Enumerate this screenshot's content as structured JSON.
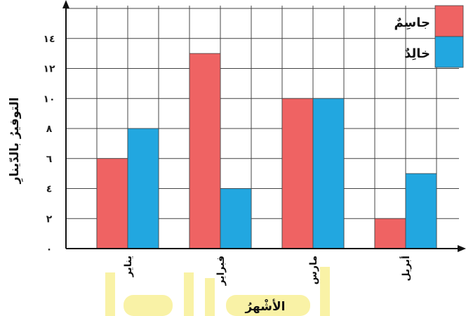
{
  "chart_data": {
    "type": "bar",
    "categories": [
      "يناير",
      "فبراير",
      "مارس",
      "أبريل"
    ],
    "series": [
      {
        "name": "جاسِمٌ",
        "values": [
          6,
          13,
          10,
          2
        ]
      },
      {
        "name": "خالِدٌ",
        "values": [
          8,
          4,
          10,
          5
        ]
      }
    ],
    "y_ticks": [
      {
        "value": 0,
        "label": "٠"
      },
      {
        "value": 2,
        "label": "٢"
      },
      {
        "value": 4,
        "label": "٤"
      },
      {
        "value": 6,
        "label": "٦"
      },
      {
        "value": 8,
        "label": "٨"
      },
      {
        "value": 10,
        "label": "١٠"
      },
      {
        "value": 12,
        "label": "١٢"
      },
      {
        "value": 14,
        "label": "١٤"
      }
    ],
    "ylim": [
      0,
      16
    ],
    "xlabel": "الأشْهرُ",
    "ylabel": "التوفيرُ بالدّينارِ",
    "grid": true,
    "legend": "top-right",
    "colors": {
      "series_0": "#ef6363",
      "series_1": "#22a7e0",
      "grid": "#444444",
      "axis": "#111111"
    }
  }
}
